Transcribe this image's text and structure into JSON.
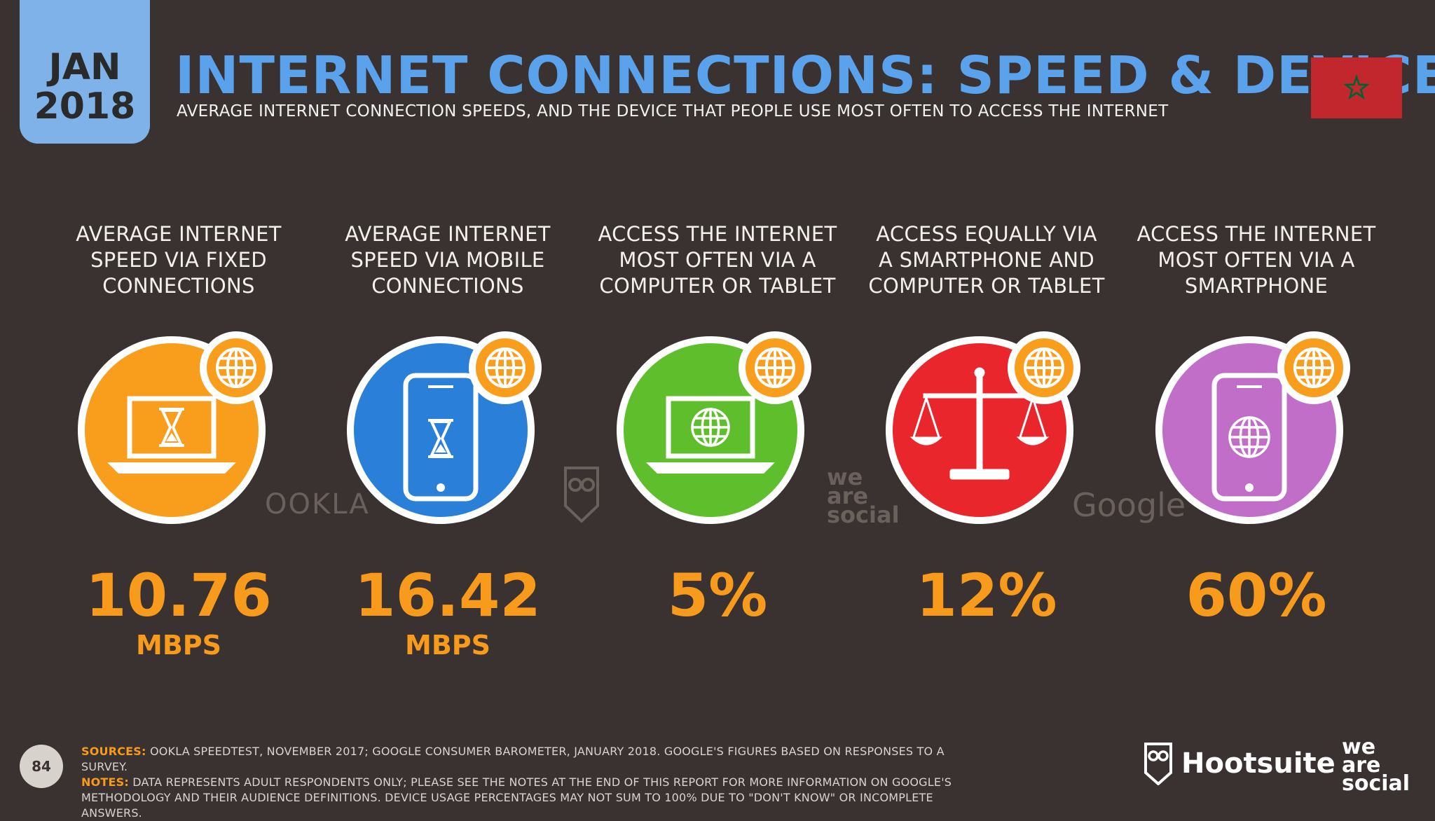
{
  "header": {
    "month": "JAN",
    "year": "2018",
    "title": "INTERNET CONNECTIONS: SPEED & DEVICES",
    "subtitle": "AVERAGE INTERNET CONNECTION SPEEDS, AND THE DEVICE THAT PEOPLE USE MOST OFTEN TO ACCESS THE INTERNET"
  },
  "flag": {
    "icon": "morocco-flag-icon",
    "color": "#c1272d",
    "star_color": "#006233"
  },
  "colors": {
    "title": "#5aa2ec",
    "accent": "#f89a1c",
    "background": "#3a3230",
    "date_tab": "#7fb2e8"
  },
  "stats": [
    {
      "label_lines": [
        "AVERAGE INTERNET",
        "SPEED VIA FIXED",
        "CONNECTIONS"
      ],
      "value": "10.76",
      "unit": "MBPS",
      "color": "#f99d1c",
      "icon": "laptop-hourglass-icon"
    },
    {
      "label_lines": [
        "AVERAGE INTERNET",
        "SPEED VIA MOBILE",
        "CONNECTIONS"
      ],
      "value": "16.42",
      "unit": "MBPS",
      "color": "#2a7fd8",
      "icon": "phone-hourglass-icon"
    },
    {
      "label_lines": [
        "ACCESS THE INTERNET",
        "MOST OFTEN VIA A",
        "COMPUTER OR TABLET"
      ],
      "value": "5%",
      "unit": "",
      "color": "#5fbe2c",
      "icon": "laptop-globe-icon"
    },
    {
      "label_lines": [
        "ACCESS EQUALLY VIA",
        "A SMARTPHONE AND",
        "COMPUTER OR TABLET"
      ],
      "value": "12%",
      "unit": "",
      "color": "#e8262b",
      "icon": "scales-icon"
    },
    {
      "label_lines": [
        "ACCESS THE INTERNET",
        "MOST OFTEN VIA A",
        "SMARTPHONE"
      ],
      "value": "60%",
      "unit": "",
      "color": "#c06ec8",
      "icon": "phone-globe-icon"
    }
  ],
  "watermarks": {
    "ookla": "OOKLA",
    "we_are_social": [
      "we",
      "are",
      "social"
    ],
    "google": "Google"
  },
  "footer": {
    "page_number": "84",
    "sources_key": "SOURCES:",
    "sources_text": "OOKLA SPEEDTEST, NOVEMBER 2017; GOOGLE CONSUMER BAROMETER, JANUARY 2018. GOOGLE'S FIGURES BASED ON RESPONSES TO A SURVEY.",
    "notes_key": "NOTES:",
    "notes_text": "DATA REPRESENTS ADULT RESPONDENTS ONLY; PLEASE SEE THE NOTES AT THE END OF THIS REPORT FOR MORE INFORMATION ON GOOGLE'S METHODOLOGY AND THEIR AUDIENCE DEFINITIONS. DEVICE USAGE PERCENTAGES MAY NOT SUM TO 100% DUE TO \"DON'T KNOW\" OR INCOMPLETE ANSWERS.",
    "brand_hootsuite": "Hootsuite",
    "brand_wearesocial": [
      "we",
      "are",
      "social"
    ]
  }
}
